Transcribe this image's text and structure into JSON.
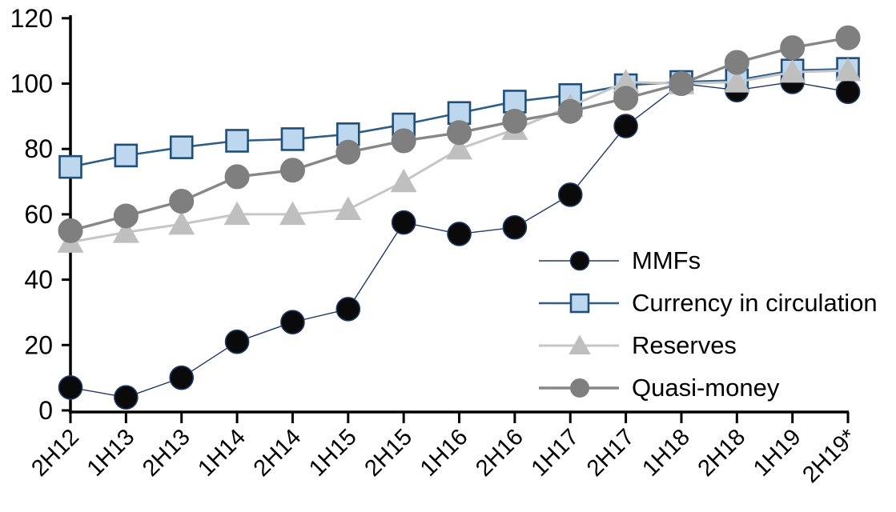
{
  "chart_data": {
    "type": "line",
    "title": "",
    "categories": [
      "2H12",
      "1H13",
      "2H13",
      "1H14",
      "2H14",
      "1H15",
      "2H15",
      "1H16",
      "2H16",
      "1H17",
      "2H17",
      "1H18",
      "2H18",
      "1H19",
      "2H19*"
    ],
    "series": [
      {
        "name": "MMFs",
        "marker": "circle",
        "marker_fill": "#0a0a0a",
        "marker_stroke": "#1F3864",
        "marker_stroke_width": 1.6,
        "marker_size": 29,
        "legend_marker_size": 23,
        "line_color": "#1F3864",
        "line_width": 1.4,
        "values": [
          7,
          4,
          10,
          21,
          27,
          31,
          57.5,
          54,
          56,
          66,
          87,
          100,
          98,
          100.5,
          97.5
        ]
      },
      {
        "name": "Currency in circulation",
        "marker": "square",
        "marker_fill": "#BDD7EE",
        "marker_stroke": "#1F4E79",
        "marker_stroke_width": 2.6,
        "marker_size": 27,
        "legend_marker_size": 22,
        "line_color": "#2D5F8B",
        "line_width": 2.6,
        "values": [
          74.5,
          78,
          80.5,
          82.5,
          83,
          84.5,
          87.5,
          91,
          94.5,
          96.5,
          99.5,
          100.5,
          101,
          104,
          104.5
        ]
      },
      {
        "name": "Reserves",
        "marker": "triangle",
        "marker_fill": "#BFBFBF",
        "marker_stroke": "#BFBFBF",
        "marker_stroke_width": 0,
        "marker_size": 30,
        "legend_marker_size": 25,
        "line_color": "#C6C6C6",
        "line_width": 3,
        "values": [
          51.5,
          54.5,
          57,
          60,
          60,
          61.5,
          70,
          80,
          86,
          93,
          100.5,
          100,
          100.5,
          103.5,
          104
        ]
      },
      {
        "name": "Quasi-money",
        "marker": "circle",
        "marker_fill": "#7F7F7F",
        "marker_stroke": "#7F7F7F",
        "marker_stroke_width": 1,
        "marker_size": 30,
        "legend_marker_size": 23,
        "line_color": "#878787",
        "line_width": 3.4,
        "values": [
          55,
          59.5,
          64,
          71.5,
          73.5,
          79,
          82.5,
          85,
          88.5,
          91.5,
          95.5,
          100,
          106.5,
          111,
          114
        ]
      }
    ],
    "xlabel": "",
    "ylabel": "",
    "ylim": [
      0,
      120
    ],
    "yticks": [
      0,
      20,
      40,
      60,
      80,
      100,
      120
    ],
    "grid": false,
    "legend_position": "inside-right",
    "axis_color": "#000000",
    "tick_label_color": "#000000"
  }
}
